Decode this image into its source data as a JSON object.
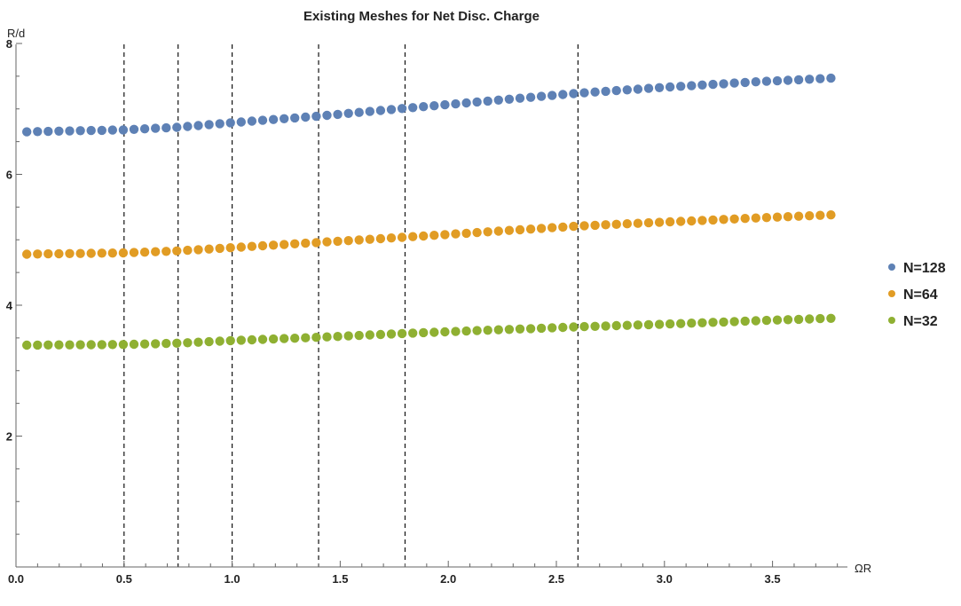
{
  "chart_data": {
    "type": "scatter",
    "title": "Existing Meshes for Net Disc. Charge",
    "xlabel": "ΩR",
    "ylabel": "R/d",
    "xlim": [
      0,
      3.9
    ],
    "ylim": [
      0,
      8
    ],
    "x_ticks": [
      "0.0",
      "0.5",
      "1.0",
      "1.5",
      "2.0",
      "2.5",
      "3.0",
      "3.5"
    ],
    "x_tick_values": [
      0,
      0.5,
      1.0,
      1.5,
      2.0,
      2.5,
      3.0,
      3.5
    ],
    "y_ticks": [
      "2",
      "4",
      "6",
      "8"
    ],
    "y_tick_values": [
      2,
      4,
      6,
      8
    ],
    "x_range": [
      0.05,
      3.77
    ],
    "point_count": 76,
    "vertical_dashed_lines": [
      0.5,
      0.75,
      1.0,
      1.4,
      1.8,
      2.6
    ],
    "legend_position": "right",
    "grid": false,
    "series": [
      {
        "name": "N=128",
        "color": "#5e81b5",
        "y_start": 6.65,
        "y_end": 7.47,
        "y_knots": [
          [
            0.05,
            6.65
          ],
          [
            0.5,
            6.68
          ],
          [
            0.75,
            6.72
          ],
          [
            1.0,
            6.79
          ],
          [
            1.4,
            6.89
          ],
          [
            1.8,
            7.01
          ],
          [
            2.6,
            7.24
          ],
          [
            3.0,
            7.33
          ],
          [
            3.4,
            7.41
          ],
          [
            3.77,
            7.47
          ]
        ]
      },
      {
        "name": "N=64",
        "color": "#e19c24",
        "y_start": 4.78,
        "y_end": 5.38,
        "y_knots": [
          [
            0.05,
            4.78
          ],
          [
            0.5,
            4.8
          ],
          [
            0.75,
            4.83
          ],
          [
            1.0,
            4.88
          ],
          [
            1.4,
            4.96
          ],
          [
            1.8,
            5.04
          ],
          [
            2.6,
            5.21
          ],
          [
            3.0,
            5.27
          ],
          [
            3.4,
            5.33
          ],
          [
            3.77,
            5.38
          ]
        ]
      },
      {
        "name": "N=32",
        "color": "#8fb032",
        "y_start": 3.39,
        "y_end": 3.8,
        "y_knots": [
          [
            0.05,
            3.39
          ],
          [
            0.5,
            3.4
          ],
          [
            0.75,
            3.42
          ],
          [
            1.0,
            3.46
          ],
          [
            1.4,
            3.51
          ],
          [
            1.8,
            3.57
          ],
          [
            2.6,
            3.67
          ],
          [
            3.0,
            3.71
          ],
          [
            3.4,
            3.76
          ],
          [
            3.77,
            3.8
          ]
        ]
      }
    ]
  }
}
